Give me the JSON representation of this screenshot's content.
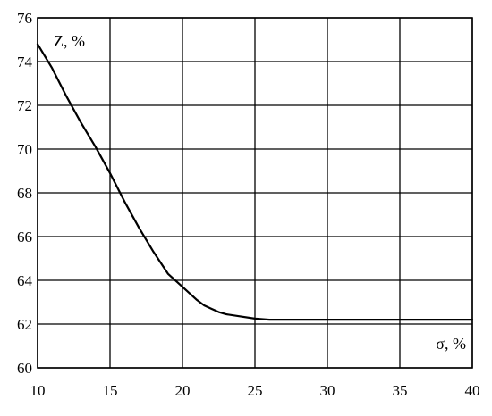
{
  "chart_data": {
    "type": "line",
    "title": "",
    "xlabel": "σ, %",
    "ylabel": "Z, %",
    "xlim": [
      10,
      40
    ],
    "ylim": [
      60,
      76
    ],
    "x_ticks": [
      "10",
      "15",
      "20",
      "25",
      "30",
      "35",
      "40"
    ],
    "y_ticks": [
      "60",
      "62",
      "64",
      "66",
      "68",
      "70",
      "72",
      "74",
      "76"
    ],
    "grid": true,
    "legend": "none",
    "line_color": "#000000",
    "series": [
      {
        "x": [
          10,
          11,
          12,
          13,
          14,
          15,
          16,
          17,
          18,
          19,
          20,
          20.5,
          21,
          21.5,
          22,
          22.5,
          23,
          24,
          25,
          26,
          27,
          28,
          29,
          30,
          32,
          35,
          38,
          40
        ],
        "y": [
          74.8,
          73.7,
          72.4,
          71.2,
          70.1,
          68.9,
          67.6,
          66.4,
          65.3,
          64.3,
          63.7,
          63.4,
          63.1,
          62.85,
          62.7,
          62.55,
          62.45,
          62.35,
          62.25,
          62.2,
          62.2,
          62.2,
          62.2,
          62.2,
          62.2,
          62.2,
          62.2,
          62.2
        ]
      }
    ]
  }
}
